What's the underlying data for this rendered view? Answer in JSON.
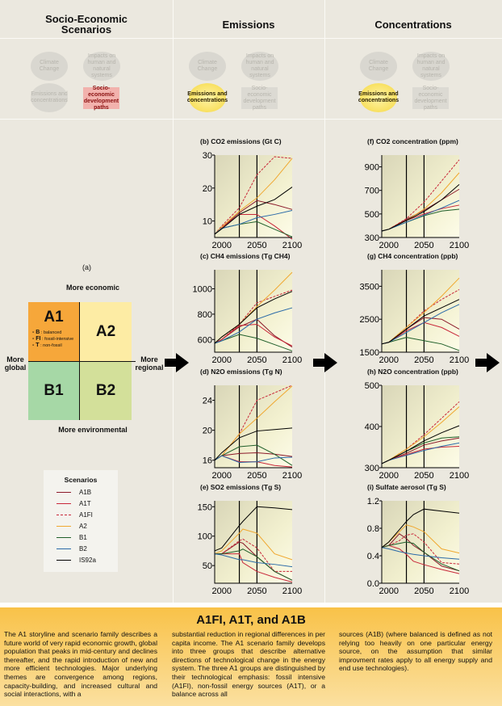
{
  "columns": [
    {
      "title_line1": "Socio-Economic",
      "title_line2": "Scenarios"
    },
    {
      "title_line1": "Emissions",
      "title_line2": ""
    },
    {
      "title_line1": "Concentrations",
      "title_line2": ""
    }
  ],
  "mini_diagram": {
    "climate_change": "Climate Change",
    "impacts": "Impacts on human and natural systems",
    "emissions": "Emissions and concentrations",
    "socio": "Socio-economic development paths",
    "highlight_colors": {
      "socio": "#f2b2ad",
      "emissions": "#f8e060"
    }
  },
  "quadrant": {
    "panel_label": "(a)",
    "top": "More economic",
    "bottom": "More environmental",
    "left": "More global",
    "right": "More regional",
    "cells": [
      {
        "label": "A1",
        "color": "#f6a73a"
      },
      {
        "label": "A2",
        "color": "#fdeca4"
      },
      {
        "label": "B1",
        "color": "#a6d8a6"
      },
      {
        "label": "B2",
        "color": "#d3e09a"
      }
    ],
    "a1_sub": [
      {
        "code": "B",
        "desc": "balanced"
      },
      {
        "code": "FI",
        "desc": "fossil-intensive"
      },
      {
        "code": "T",
        "desc": "non-fossil"
      }
    ]
  },
  "legend": {
    "title": "Scenarios",
    "items": [
      {
        "name": "A1B",
        "color": "#8b1a2a",
        "dash": false
      },
      {
        "name": "A1T",
        "color": "#c8283a",
        "dash": false
      },
      {
        "name": "A1FI",
        "color": "#c8283a",
        "dash": true
      },
      {
        "name": "A2",
        "color": "#f0a830",
        "dash": false
      },
      {
        "name": "B1",
        "color": "#1f5f2a",
        "dash": false
      },
      {
        "name": "B2",
        "color": "#2a6aa8",
        "dash": false
      },
      {
        "name": "IS92a",
        "color": "#000000",
        "dash": false
      }
    ]
  },
  "chart_data": [
    {
      "id": "b",
      "type": "line",
      "title": "(b) CO2 emissions (Gt C)",
      "xlabel": "",
      "ylabel": "Gt C",
      "xlim": [
        1990,
        2100
      ],
      "ylim": [
        5,
        30
      ],
      "yticks": [
        10,
        20,
        30
      ],
      "xticks": [
        2000,
        2050,
        2100
      ],
      "vlines": [
        2025,
        2050
      ],
      "x": [
        1990,
        2000,
        2025,
        2050,
        2075,
        2100
      ],
      "series": [
        {
          "name": "A1B",
          "values": [
            6,
            8,
            12.5,
            16.2,
            15,
            13.5
          ]
        },
        {
          "name": "A1T",
          "values": [
            6,
            8,
            12,
            12,
            8.5,
            4.5
          ]
        },
        {
          "name": "A1FI",
          "values": [
            6,
            8.5,
            14,
            24,
            29.5,
            29
          ]
        },
        {
          "name": "A2",
          "values": [
            6,
            8.2,
            13,
            17,
            22.5,
            29
          ]
        },
        {
          "name": "B1",
          "values": [
            6,
            7.8,
            9,
            9.8,
            7.5,
            5.2
          ]
        },
        {
          "name": "B2",
          "values": [
            6,
            7.8,
            9,
            11,
            12,
            13.2
          ]
        },
        {
          "name": "IS92a",
          "values": [
            6,
            7.6,
            12,
            14.5,
            16.5,
            20.3
          ]
        }
      ]
    },
    {
      "id": "c",
      "type": "line",
      "title": "(c) CH4 emissions (Tg CH4)",
      "ylabel": "Tg CH4",
      "xlim": [
        1990,
        2100
      ],
      "ylim": [
        500,
        1150
      ],
      "yticks": [
        600,
        800,
        1000
      ],
      "xticks": [
        2000,
        2050,
        2100
      ],
      "vlines": [
        2025,
        2050
      ],
      "x": [
        1990,
        2000,
        2025,
        2050,
        2075,
        2100
      ],
      "series": [
        {
          "name": "A1B",
          "values": [
            570,
            600,
            700,
            760,
            630,
            540
          ]
        },
        {
          "name": "A1T",
          "values": [
            570,
            600,
            710,
            720,
            620,
            550
          ]
        },
        {
          "name": "A1FI",
          "values": [
            570,
            600,
            720,
            890,
            940,
            990
          ]
        },
        {
          "name": "A2",
          "values": [
            570,
            620,
            720,
            860,
            990,
            1130
          ]
        },
        {
          "name": "B1",
          "values": [
            570,
            590,
            640,
            610,
            560,
            510
          ]
        },
        {
          "name": "B2",
          "values": [
            570,
            590,
            660,
            760,
            810,
            850
          ]
        },
        {
          "name": "IS92a",
          "values": [
            570,
            620,
            720,
            850,
            920,
            980
          ]
        }
      ]
    },
    {
      "id": "d",
      "type": "line",
      "title": "(d) N2O emissions (Tg N)",
      "ylabel": "Tg N",
      "xlim": [
        1990,
        2100
      ],
      "ylim": [
        15,
        26
      ],
      "yticks": [
        16,
        20,
        24
      ],
      "xticks": [
        2000,
        2050,
        2100
      ],
      "vlines": [
        2025,
        2050
      ],
      "x": [
        1990,
        2000,
        2025,
        2050,
        2075,
        2100
      ],
      "series": [
        {
          "name": "A1B",
          "values": [
            16,
            16.6,
            16.9,
            17.0,
            16.8,
            16.5
          ]
        },
        {
          "name": "A1T",
          "values": [
            16,
            16.6,
            15.8,
            15.8,
            15.3,
            15.1
          ]
        },
        {
          "name": "A1FI",
          "values": [
            16,
            16.6,
            19.5,
            24,
            25,
            26
          ]
        },
        {
          "name": "A2",
          "values": [
            16,
            16.6,
            19.5,
            21.6,
            23.8,
            25.9
          ]
        },
        {
          "name": "B1",
          "values": [
            16,
            16.6,
            17.8,
            18,
            16.8,
            15.3
          ]
        },
        {
          "name": "B2",
          "values": [
            16,
            16.6,
            15.7,
            15.8,
            16.3,
            16.4
          ]
        },
        {
          "name": "IS92a",
          "values": [
            16,
            17,
            19,
            19.9,
            20.1,
            20.3
          ]
        }
      ]
    },
    {
      "id": "e",
      "type": "line",
      "title": "(e) SO2 emissions (Tg S)",
      "ylabel": "Tg S",
      "xlim": [
        1990,
        2100
      ],
      "ylim": [
        20,
        160
      ],
      "yticks": [
        50,
        100,
        150
      ],
      "xticks": [
        2000,
        2050,
        2100
      ],
      "vlines": [
        2025,
        2050
      ],
      "x": [
        1990,
        2000,
        2025,
        2030,
        2050,
        2075,
        2100
      ],
      "series": [
        {
          "name": "A1B",
          "values": [
            70,
            70,
            90,
            88,
            65,
            40,
            25
          ]
        },
        {
          "name": "A1T",
          "values": [
            70,
            70,
            70,
            55,
            40,
            30,
            22
          ]
        },
        {
          "name": "A1FI",
          "values": [
            70,
            70,
            92,
            95,
            80,
            40,
            40
          ]
        },
        {
          "name": "A2",
          "values": [
            70,
            75,
            105,
            112,
            105,
            70,
            60
          ]
        },
        {
          "name": "B1",
          "values": [
            70,
            70,
            75,
            78,
            65,
            40,
            25
          ]
        },
        {
          "name": "B2",
          "values": [
            70,
            68,
            60,
            60,
            55,
            52,
            48
          ]
        },
        {
          "name": "IS92a",
          "values": [
            75,
            80,
            118,
            125,
            150,
            148,
            145
          ]
        }
      ]
    },
    {
      "id": "f",
      "type": "line",
      "title": "(f) CO2 concentration (ppm)",
      "ylabel": "ppm",
      "xlim": [
        1990,
        2100
      ],
      "ylim": [
        300,
        1000
      ],
      "yticks": [
        300,
        500,
        700,
        900
      ],
      "xticks": [
        2000,
        2050,
        2100
      ],
      "vlines": [
        2025,
        2050
      ],
      "x": [
        1990,
        2000,
        2025,
        2050,
        2075,
        2100
      ],
      "series": [
        {
          "name": "A1B",
          "values": [
            355,
            370,
            455,
            530,
            620,
            710
          ]
        },
        {
          "name": "A1T",
          "values": [
            355,
            370,
            445,
            500,
            545,
            575
          ]
        },
        {
          "name": "A1FI",
          "values": [
            355,
            370,
            460,
            600,
            780,
            960
          ]
        },
        {
          "name": "A2",
          "values": [
            355,
            370,
            445,
            540,
            680,
            850
          ]
        },
        {
          "name": "B1",
          "values": [
            355,
            370,
            430,
            485,
            525,
            540
          ]
        },
        {
          "name": "B2",
          "values": [
            355,
            370,
            430,
            490,
            550,
            615
          ]
        },
        {
          "name": "IS92a",
          "values": [
            355,
            370,
            445,
            520,
            620,
            750
          ]
        }
      ]
    },
    {
      "id": "g",
      "type": "line",
      "title": "(g) CH4 concentration (ppb)",
      "ylabel": "ppb",
      "xlim": [
        1990,
        2100
      ],
      "ylim": [
        1500,
        4000
      ],
      "yticks": [
        1500,
        2500,
        3500
      ],
      "xticks": [
        2000,
        2050,
        2100
      ],
      "vlines": [
        2025,
        2050
      ],
      "x": [
        1990,
        2000,
        2025,
        2050,
        2075,
        2100
      ],
      "series": [
        {
          "name": "A1B",
          "values": [
            1750,
            1800,
            2200,
            2550,
            2500,
            2200
          ]
        },
        {
          "name": "A1T",
          "values": [
            1750,
            1800,
            2150,
            2400,
            2250,
            1980
          ]
        },
        {
          "name": "A1FI",
          "values": [
            1750,
            1800,
            2250,
            2750,
            3100,
            3400
          ]
        },
        {
          "name": "A2",
          "values": [
            1750,
            1800,
            2250,
            2700,
            3200,
            3750
          ]
        },
        {
          "name": "B1",
          "values": [
            1750,
            1800,
            1950,
            1850,
            1750,
            1550
          ]
        },
        {
          "name": "B2",
          "values": [
            1750,
            1800,
            2100,
            2400,
            2700,
            2950
          ]
        },
        {
          "name": "IS92a",
          "values": [
            1750,
            1800,
            2200,
            2600,
            2850,
            3100
          ]
        }
      ]
    },
    {
      "id": "h",
      "type": "line",
      "title": "(h) N2O concentration (ppb)",
      "ylabel": "ppb",
      "xlim": [
        1990,
        2100
      ],
      "ylim": [
        300,
        500
      ],
      "yticks": [
        300,
        400,
        500
      ],
      "xticks": [
        2000,
        2050,
        2100
      ],
      "vlines": [
        2025,
        2050
      ],
      "x": [
        1990,
        2000,
        2025,
        2050,
        2075,
        2100
      ],
      "series": [
        {
          "name": "A1B",
          "values": [
            310,
            318,
            335,
            355,
            365,
            372
          ]
        },
        {
          "name": "A1T",
          "values": [
            310,
            318,
            332,
            345,
            350,
            352
          ]
        },
        {
          "name": "A1FI",
          "values": [
            310,
            318,
            345,
            380,
            420,
            460
          ]
        },
        {
          "name": "A2",
          "values": [
            310,
            318,
            345,
            375,
            410,
            448
          ]
        },
        {
          "name": "B1",
          "values": [
            310,
            318,
            340,
            360,
            372,
            375
          ]
        },
        {
          "name": "B2",
          "values": [
            310,
            318,
            330,
            342,
            352,
            360
          ]
        },
        {
          "name": "IS92a",
          "values": [
            310,
            318,
            340,
            365,
            385,
            402
          ]
        }
      ]
    },
    {
      "id": "i",
      "type": "line",
      "title": "(i) Sulfate aerosol (Tg S)",
      "ylabel": "Tg S",
      "xlim": [
        1990,
        2100
      ],
      "ylim": [
        0,
        1.2
      ],
      "yticks": [
        0.0,
        0.4,
        0.8,
        1.2
      ],
      "xticks": [
        2000,
        2050,
        2100
      ],
      "vlines": [
        2025,
        2050
      ],
      "x": [
        1990,
        2000,
        2015,
        2025,
        2035,
        2050,
        2075,
        2100
      ],
      "series": [
        {
          "name": "A1B",
          "values": [
            0.52,
            0.55,
            0.72,
            0.65,
            0.55,
            0.45,
            0.25,
            0.18
          ]
        },
        {
          "name": "A1T",
          "values": [
            0.52,
            0.55,
            0.5,
            0.42,
            0.32,
            0.27,
            0.2,
            0.14
          ]
        },
        {
          "name": "A1FI",
          "values": [
            0.52,
            0.55,
            0.62,
            0.7,
            0.72,
            0.6,
            0.3,
            0.28
          ]
        },
        {
          "name": "A2",
          "values": [
            0.52,
            0.6,
            0.75,
            0.85,
            0.82,
            0.75,
            0.5,
            0.44
          ]
        },
        {
          "name": "B1",
          "values": [
            0.52,
            0.55,
            0.58,
            0.6,
            0.58,
            0.45,
            0.28,
            0.18
          ]
        },
        {
          "name": "B2",
          "values": [
            0.52,
            0.5,
            0.46,
            0.44,
            0.42,
            0.4,
            0.37,
            0.35
          ]
        },
        {
          "name": "IS92a",
          "values": [
            0.52,
            0.6,
            0.78,
            0.9,
            1.0,
            1.08,
            1.05,
            1.02
          ]
        }
      ]
    }
  ],
  "storyline": {
    "title": "A1FI, A1T, and A1B",
    "col1": "The A1 storyline and scenario family describes a future world of very rapid economic growth, global population that peaks in mid-century and declines thereafter, and the rapid introduction of new and more efficient technologies. Major underlying themes are convergence among regions, capacity-building, and increased cultural and social interactions, with a",
    "col2": "substantial reduction in regional differences in per capita income. The A1 scenario family develops into three groups that describe alternative directions of technological change in the energy system. The three A1 groups are distinguished by their technological emphasis: fossil intensive (A1FI), non-fossil energy sources (A1T), or a balance across all",
    "col3": "sources (A1B) (where balanced is defined as not relying too heavily on one particular energy source, on the assumption that similar improvment rates apply to all energy supply and end use technologies)."
  }
}
